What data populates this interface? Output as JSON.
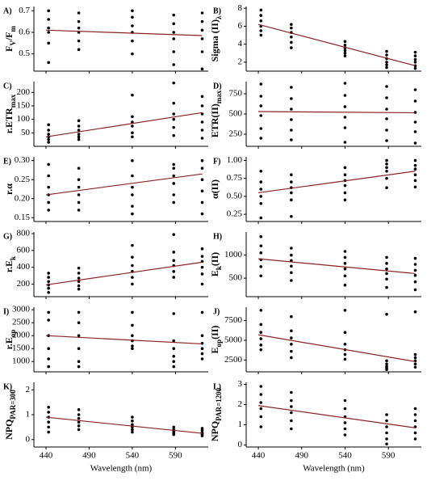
{
  "chart_data": [
    {
      "type": "scatter",
      "label": "A)",
      "ylabel": [
        {
          "text": "F"
        },
        {
          "text": "V",
          "sub": true
        },
        {
          "text": "/F"
        },
        {
          "text": "m",
          "sub": true
        }
      ],
      "color": "#000000",
      "x": [
        443,
        443,
        443,
        443,
        443,
        443,
        478,
        478,
        478,
        478,
        478,
        478,
        540,
        540,
        540,
        540,
        540,
        540,
        588,
        588,
        588,
        588,
        588,
        588,
        621,
        621,
        621,
        621,
        621,
        621
      ],
      "y": [
        0.7,
        0.66,
        0.62,
        0.6,
        0.55,
        0.46,
        0.69,
        0.65,
        0.62,
        0.6,
        0.56,
        0.52,
        0.7,
        0.67,
        0.63,
        0.6,
        0.56,
        0.5,
        0.68,
        0.64,
        0.6,
        0.57,
        0.51,
        0.45,
        0.69,
        0.65,
        0.61,
        0.57,
        0.51,
        0.43
      ],
      "trend": {
        "x": [
          440,
          621
        ],
        "y": [
          0.61,
          0.585
        ],
        "color": "#8b2323"
      },
      "xlim": [
        426,
        628
      ],
      "xticks": [
        440,
        490,
        540,
        590
      ],
      "ylim": [
        0.42,
        0.72
      ],
      "yticks": [
        0.5,
        0.6,
        0.7
      ]
    },
    {
      "type": "scatter",
      "label": "B)",
      "ylabel": [
        {
          "text": "Sigma (II)"
        },
        {
          "text": "λ",
          "sub": true
        }
      ],
      "color": "#000000",
      "x": [
        443,
        443,
        443,
        443,
        443,
        443,
        478,
        478,
        478,
        478,
        478,
        478,
        540,
        540,
        540,
        540,
        540,
        540,
        588,
        588,
        588,
        588,
        588,
        588,
        621,
        621,
        621,
        621,
        621,
        621
      ],
      "y": [
        7.8,
        7.2,
        6.6,
        6.0,
        5.5,
        5.0,
        6.2,
        5.8,
        5.3,
        4.8,
        4.2,
        3.6,
        4.3,
        3.9,
        3.6,
        3.3,
        3.0,
        2.7,
        3.2,
        2.8,
        2.4,
        2.0,
        1.7,
        1.4,
        3.1,
        2.7,
        2.3,
        2.0,
        1.6,
        1.3
      ],
      "trend": {
        "x": [
          440,
          621
        ],
        "y": [
          6.2,
          1.6
        ],
        "color": "#8b2323"
      },
      "xlim": [
        426,
        628
      ],
      "xticks": [
        440,
        490,
        540,
        590
      ],
      "ylim": [
        1,
        8.2
      ],
      "yticks": [
        2,
        4,
        6,
        8
      ]
    },
    {
      "type": "scatter",
      "label": "C)",
      "ylabel": [
        {
          "text": "r.ETR"
        },
        {
          "text": "max",
          "sub": true
        }
      ],
      "color": "#000000",
      "x": [
        443,
        443,
        443,
        443,
        443,
        443,
        478,
        478,
        478,
        478,
        478,
        478,
        540,
        540,
        540,
        540,
        540,
        540,
        588,
        588,
        588,
        588,
        588,
        588,
        621,
        621,
        621,
        621,
        621,
        621
      ],
      "y": [
        80,
        60,
        45,
        35,
        25,
        15,
        95,
        75,
        60,
        45,
        35,
        25,
        190,
        110,
        90,
        75,
        50,
        35,
        235,
        160,
        120,
        100,
        70,
        40,
        185,
        150,
        120,
        90,
        60,
        30
      ],
      "trend": {
        "x": [
          440,
          621
        ],
        "y": [
          35,
          125
        ],
        "color": "#8b2323"
      },
      "xlim": [
        426,
        628
      ],
      "xticks": [
        440,
        490,
        540,
        590
      ],
      "ylim": [
        0,
        240
      ],
      "yticks": [
        50,
        100,
        150,
        200
      ]
    },
    {
      "type": "scatter",
      "label": "D)",
      "ylabel": [
        {
          "text": "ETR(II)"
        },
        {
          "text": "max",
          "sub": true
        }
      ],
      "color": "#000000",
      "x": [
        443,
        443,
        443,
        443,
        443,
        443,
        478,
        478,
        478,
        478,
        478,
        478,
        540,
        540,
        540,
        540,
        540,
        540,
        588,
        588,
        588,
        588,
        588,
        588,
        621,
        621,
        621,
        621,
        621,
        621
      ],
      "y": [
        870,
        720,
        600,
        480,
        320,
        200,
        830,
        690,
        560,
        430,
        300,
        180,
        880,
        730,
        590,
        460,
        330,
        150,
        840,
        700,
        560,
        440,
        300,
        170,
        800,
        660,
        520,
        400,
        280,
        140
      ],
      "trend": {
        "x": [
          440,
          621
        ],
        "y": [
          530,
          515
        ],
        "color": "#8b2323"
      },
      "xlim": [
        426,
        628
      ],
      "xticks": [
        440,
        490,
        540,
        590
      ],
      "ylim": [
        100,
        900
      ],
      "yticks": [
        250,
        500,
        750
      ]
    },
    {
      "type": "scatter",
      "label": "E)",
      "ylabel": [
        {
          "text": "r.α"
        }
      ],
      "color": "#000000",
      "x": [
        443,
        443,
        443,
        443,
        443,
        443,
        478,
        478,
        478,
        478,
        478,
        478,
        540,
        540,
        540,
        540,
        540,
        540,
        588,
        588,
        588,
        588,
        588,
        588,
        621,
        621,
        621,
        621,
        621,
        621
      ],
      "y": [
        0.29,
        0.26,
        0.23,
        0.21,
        0.19,
        0.17,
        0.28,
        0.25,
        0.23,
        0.21,
        0.19,
        0.17,
        0.3,
        0.26,
        0.23,
        0.21,
        0.18,
        0.16,
        0.29,
        0.28,
        0.26,
        0.24,
        0.21,
        0.19,
        0.3,
        0.28,
        0.25,
        0.22,
        0.19,
        0.16
      ],
      "trend": {
        "x": [
          440,
          621
        ],
        "y": [
          0.21,
          0.265
        ],
        "color": "#8b2323"
      },
      "xlim": [
        426,
        628
      ],
      "xticks": [
        440,
        490,
        540,
        590
      ],
      "ylim": [
        0.14,
        0.31
      ],
      "yticks": [
        0.15,
        {
          "value": 0.2,
          "label": "0.20"
        },
        0.25,
        {
          "value": 0.3,
          "label": "0.30"
        }
      ]
    },
    {
      "type": "scatter",
      "label": "F)",
      "ylabel": [
        {
          "text": "α(II)"
        }
      ],
      "color": "#000000",
      "x": [
        443,
        443,
        443,
        443,
        443,
        443,
        478,
        478,
        478,
        478,
        478,
        478,
        540,
        540,
        540,
        540,
        540,
        540,
        588,
        588,
        588,
        588,
        588,
        588,
        621,
        621,
        621,
        621,
        621,
        621
      ],
      "y": [
        0.85,
        0.7,
        0.6,
        0.5,
        0.4,
        0.2,
        0.8,
        0.7,
        0.62,
        0.55,
        0.45,
        0.22,
        0.9,
        0.8,
        0.72,
        0.65,
        0.55,
        0.45,
        1.0,
        0.95,
        0.9,
        0.85,
        0.75,
        0.62,
        1.0,
        0.93,
        0.88,
        0.8,
        0.72,
        0.63
      ],
      "trend": {
        "x": [
          440,
          621
        ],
        "y": [
          0.55,
          0.85
        ],
        "color": "#8b2323"
      },
      "xlim": [
        426,
        628
      ],
      "xticks": [
        440,
        490,
        540,
        590
      ],
      "ylim": [
        0.15,
        1.05
      ],
      "yticks": [
        0.25,
        {
          "value": 0.5,
          "label": "0.50"
        },
        0.75,
        {
          "value": 1,
          "label": "1.00"
        }
      ]
    },
    {
      "type": "scatter",
      "label": "G)",
      "ylabel": [
        {
          "text": "r.E"
        },
        {
          "text": "k",
          "sub": true
        }
      ],
      "color": "#000000",
      "x": [
        443,
        443,
        443,
        443,
        443,
        443,
        478,
        478,
        478,
        478,
        478,
        478,
        540,
        540,
        540,
        540,
        540,
        540,
        588,
        588,
        588,
        588,
        588,
        588,
        621,
        621,
        621,
        621,
        621,
        621
      ],
      "y": [
        330,
        280,
        230,
        190,
        150,
        100,
        390,
        330,
        270,
        230,
        180,
        140,
        660,
        520,
        420,
        350,
        280,
        200,
        790,
        580,
        480,
        420,
        350,
        280,
        620,
        530,
        470,
        400,
        320,
        200
      ],
      "trend": {
        "x": [
          440,
          621
        ],
        "y": [
          190,
          460
        ],
        "color": "#8b2323"
      },
      "xlim": [
        426,
        628
      ],
      "xticks": [
        440,
        490,
        540,
        590
      ],
      "ylim": [
        50,
        820
      ],
      "yticks": [
        200,
        400,
        600,
        800
      ]
    },
    {
      "type": "scatter",
      "label": "H)",
      "ylabel": [
        {
          "text": "E"
        },
        {
          "text": "k",
          "sub": true
        },
        {
          "text": "(II)"
        }
      ],
      "color": "#000000",
      "x": [
        443,
        443,
        443,
        443,
        443,
        443,
        478,
        478,
        478,
        478,
        478,
        478,
        540,
        540,
        540,
        540,
        540,
        540,
        588,
        588,
        588,
        588,
        588,
        588,
        621,
        621,
        621,
        621,
        621,
        621
      ],
      "y": [
        1400,
        1200,
        1050,
        900,
        750,
        550,
        1150,
        1000,
        880,
        760,
        620,
        450,
        1080,
        950,
        820,
        700,
        550,
        350,
        950,
        820,
        700,
        600,
        480,
        300,
        930,
        800,
        670,
        560,
        420,
        250
      ],
      "trend": {
        "x": [
          440,
          621
        ],
        "y": [
          920,
          600
        ],
        "color": "#8b2323"
      },
      "xlim": [
        426,
        628
      ],
      "xticks": [
        440,
        490,
        540,
        590
      ],
      "ylim": [
        100,
        1500
      ],
      "yticks": [
        500,
        1000
      ]
    },
    {
      "type": "scatter",
      "label": "I)",
      "ylabel": [
        {
          "text": "r.E"
        },
        {
          "text": "op",
          "sub": true
        }
      ],
      "color": "#000000",
      "x": [
        443,
        443,
        443,
        443,
        443,
        443,
        478,
        478,
        478,
        478,
        478,
        478,
        540,
        540,
        540,
        540,
        540,
        540,
        588,
        588,
        588,
        588,
        588,
        588,
        621,
        621,
        621,
        621,
        621,
        621
      ],
      "y": [
        2900,
        2600,
        2000,
        1500,
        1100,
        800,
        2900,
        2500,
        2000,
        1500,
        1000,
        800,
        2900,
        2400,
        2000,
        1800,
        1600,
        1500,
        2850,
        1800,
        1500,
        1200,
        1000,
        800,
        2900,
        2000,
        1700,
        1500,
        1300,
        1100
      ],
      "trend": {
        "x": [
          440,
          621
        ],
        "y": [
          2000,
          1680
        ],
        "color": "#8b2323"
      },
      "xlim": [
        426,
        628
      ],
      "xticks": [
        440,
        490,
        540,
        590
      ],
      "ylim": [
        600,
        3100
      ],
      "yticks": [
        1000,
        1500,
        2000,
        2500,
        3000
      ]
    },
    {
      "type": "scatter",
      "label": "J)",
      "ylabel": [
        {
          "text": "E"
        },
        {
          "text": "op",
          "sub": true
        },
        {
          "text": "(II)"
        }
      ],
      "color": "#000000",
      "x": [
        443,
        443,
        443,
        443,
        443,
        443,
        478,
        478,
        478,
        478,
        478,
        478,
        540,
        540,
        540,
        540,
        540,
        540,
        588,
        588,
        588,
        588,
        588,
        588,
        621,
        621,
        621,
        621,
        621,
        621
      ],
      "y": [
        8800,
        7000,
        6000,
        5200,
        4400,
        3800,
        8000,
        6200,
        5300,
        4500,
        3600,
        2800,
        8800,
        6000,
        4500,
        3800,
        3200,
        2600,
        8300,
        2400,
        2000,
        1700,
        1500,
        1300,
        8600,
        3200,
        2800,
        2400,
        2000,
        1600
      ],
      "trend": {
        "x": [
          440,
          621
        ],
        "y": [
          5700,
          2300
        ],
        "color": "#8b2323"
      },
      "xlim": [
        426,
        628
      ],
      "xticks": [
        440,
        490,
        540,
        590
      ],
      "ylim": [
        1000,
        9200
      ],
      "yticks": [
        2500,
        5000,
        7500
      ]
    },
    {
      "type": "scatter",
      "label": "K)",
      "ylabel": [
        {
          "text": "NPQ"
        },
        {
          "text": "PAR=300",
          "sub": true
        }
      ],
      "color": "#000000",
      "xlabel": "Wavelength (nm)",
      "x": [
        443,
        443,
        443,
        443,
        443,
        443,
        478,
        478,
        478,
        478,
        478,
        478,
        540,
        540,
        540,
        540,
        540,
        540,
        588,
        588,
        588,
        588,
        588,
        588,
        621,
        621,
        621,
        621,
        621,
        621
      ],
      "y": [
        1.3,
        1.1,
        0.9,
        0.7,
        0.5,
        0.3,
        1.2,
        1.0,
        0.85,
        0.7,
        0.55,
        0.4,
        0.9,
        0.75,
        0.6,
        0.5,
        0.4,
        0.3,
        0.5,
        0.4,
        0.35,
        0.3,
        0.25,
        0.2,
        0.45,
        0.38,
        0.3,
        0.25,
        0.2,
        0.15
      ],
      "trend": {
        "x": [
          440,
          621
        ],
        "y": [
          0.9,
          0.25
        ],
        "color": "#8b2323"
      },
      "xlim": [
        426,
        628
      ],
      "xticks": [
        440,
        490,
        540,
        590
      ],
      "ylim": [
        -0.3,
        2.3
      ],
      "yticks": [
        0,
        1,
        2
      ]
    },
    {
      "type": "scatter",
      "label": "L)",
      "ylabel": [
        {
          "text": "NPQ"
        },
        {
          "text": "PAR=1200",
          "sub": true
        }
      ],
      "color": "#000000",
      "xlabel": "Wavelength (nm)",
      "x": [
        443,
        443,
        443,
        443,
        443,
        443,
        478,
        478,
        478,
        478,
        478,
        478,
        540,
        540,
        540,
        540,
        540,
        540,
        588,
        588,
        588,
        588,
        588,
        588,
        621,
        621,
        621,
        621,
        621,
        621
      ],
      "y": [
        2.9,
        2.5,
        2.1,
        1.8,
        1.4,
        0.9,
        2.6,
        2.2,
        1.9,
        1.6,
        1.2,
        0.8,
        2.2,
        1.8,
        1.4,
        1.1,
        0.8,
        0.5,
        1.5,
        1.2,
        0.9,
        0.6,
        0.3,
        0.05,
        1.8,
        1.5,
        1.2,
        0.9,
        0.6,
        0.3
      ],
      "trend": {
        "x": [
          440,
          621
        ],
        "y": [
          1.95,
          0.85
        ],
        "color": "#8b2323"
      },
      "xlim": [
        426,
        628
      ],
      "xticks": [
        440,
        490,
        540,
        590
      ],
      "ylim": [
        -0.1,
        3.1
      ],
      "yticks": [
        0,
        1,
        2,
        3
      ]
    }
  ]
}
